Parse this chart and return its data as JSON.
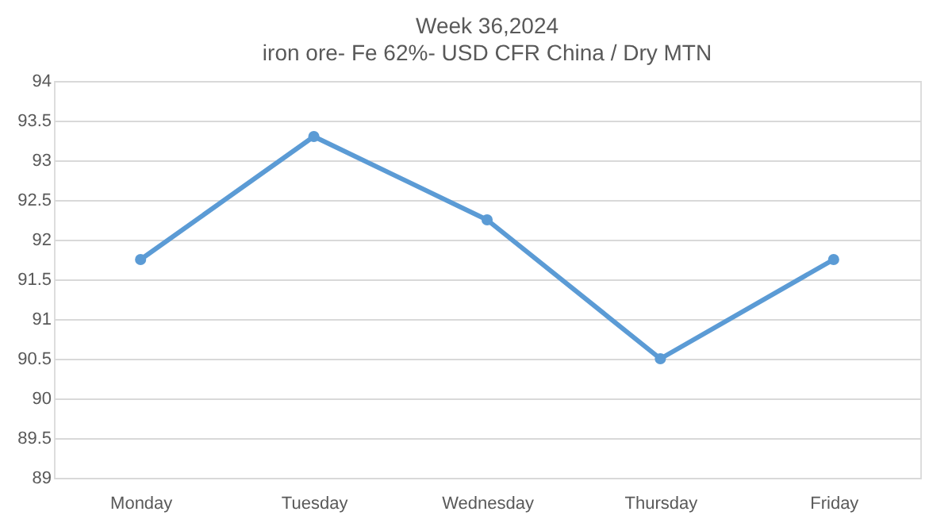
{
  "chart_data": {
    "type": "line",
    "title": "Week  36,2024",
    "subtitle": "iron ore- Fe 62%- USD CFR China / Dry MTN",
    "categories": [
      "Monday",
      "Tuesday",
      "Wednesday",
      "Thursday",
      "Friday"
    ],
    "series": [
      {
        "color": "#5b9bd5",
        "values": [
          91.75,
          93.3,
          92.25,
          90.5,
          91.75
        ]
      }
    ],
    "ylim": [
      89,
      94
    ],
    "yticks": [
      89,
      89.5,
      90,
      90.5,
      91,
      91.5,
      92,
      92.5,
      93,
      93.5,
      94
    ],
    "grid": "y",
    "marker": "circle",
    "line_style": "solid",
    "legend": false
  }
}
